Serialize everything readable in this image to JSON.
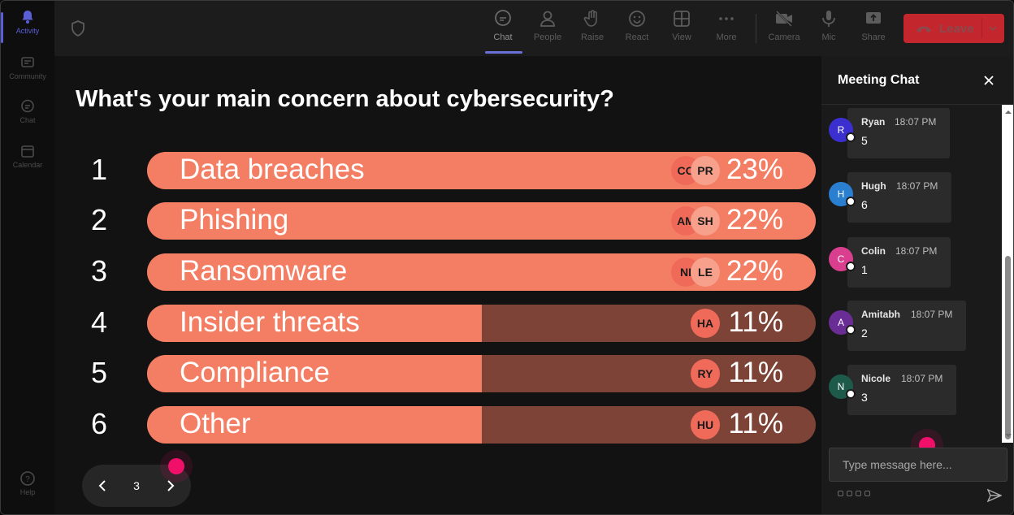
{
  "rail": {
    "items": [
      {
        "label": "Activity",
        "active": true
      },
      {
        "label": "Community",
        "active": false
      },
      {
        "label": "Chat",
        "active": false
      },
      {
        "label": "Calendar",
        "active": false
      }
    ],
    "help": "Help"
  },
  "toolbar": {
    "chat": "Chat",
    "people": "People",
    "raise": "Raise",
    "react": "React",
    "view": "View",
    "more": "More",
    "camera": "Camera",
    "mic": "Mic",
    "share": "Share",
    "leave": "Leave"
  },
  "poll": {
    "question": "What's your main concern about cybersecurity?",
    "options": [
      {
        "num": "1",
        "label": "Data breaches",
        "percent": "23%",
        "fill": 1.0,
        "avatars": [
          "CO",
          "PR"
        ]
      },
      {
        "num": "2",
        "label": "Phishing",
        "percent": "22%",
        "fill": 1.0,
        "avatars": [
          "AM",
          "SH"
        ]
      },
      {
        "num": "3",
        "label": "Ransomware",
        "percent": "22%",
        "fill": 1.0,
        "avatars": [
          "NI",
          "LE"
        ]
      },
      {
        "num": "4",
        "label": "Insider threats",
        "percent": "11%",
        "fill": 0.5,
        "avatars": [
          "HA"
        ]
      },
      {
        "num": "5",
        "label": "Compliance",
        "percent": "11%",
        "fill": 0.5,
        "avatars": [
          "RY"
        ]
      },
      {
        "num": "6",
        "label": "Other",
        "percent": "11%",
        "fill": 0.5,
        "avatars": [
          "HU"
        ]
      }
    ],
    "page": "3"
  },
  "chat": {
    "title": "Meeting Chat",
    "messages": [
      {
        "initial": "R",
        "name": "Ryan",
        "time": "18:07 PM",
        "text": "5",
        "color": "#3b30cf"
      },
      {
        "initial": "H",
        "name": "Hugh",
        "time": "18:07 PM",
        "text": "6",
        "color": "#2a7fd0"
      },
      {
        "initial": "C",
        "name": "Colin",
        "time": "18:07 PM",
        "text": "1",
        "color": "#d93f8e"
      },
      {
        "initial": "A",
        "name": "Amitabh",
        "time": "18:07 PM",
        "text": "2",
        "color": "#6a2d96"
      },
      {
        "initial": "N",
        "name": "Nicole",
        "time": "18:07 PM",
        "text": "3",
        "color": "#1e5a4a"
      }
    ],
    "input_placeholder": "Type message here..."
  },
  "colors": {
    "bar_fill": "#f37e63",
    "bar_track": "#7d4337",
    "leave": "#c4262e",
    "accent": "#6b70d8",
    "cursor": "#f0106a"
  }
}
